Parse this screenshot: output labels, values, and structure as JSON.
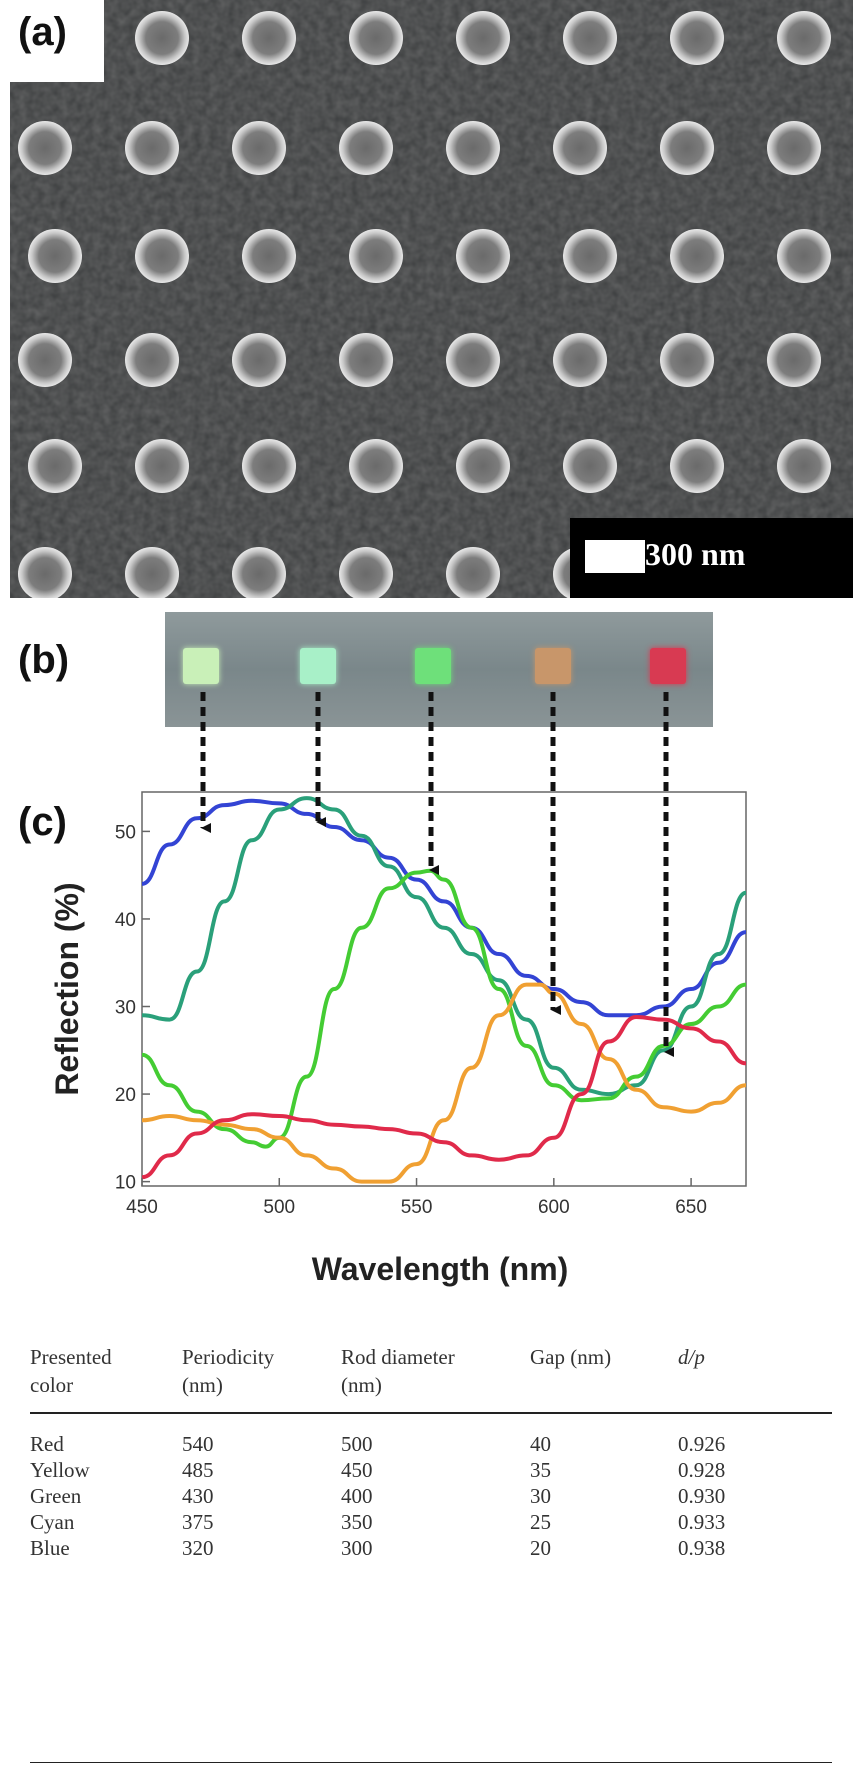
{
  "panels": {
    "a": {
      "label": "(a)",
      "scale_bar": "300 nm"
    },
    "b": {
      "label": "(b)",
      "swatches": [
        {
          "color": "#c9f0b8"
        },
        {
          "color": "#a8f0c8"
        },
        {
          "color": "#6ee07a"
        },
        {
          "color": "#c8966a"
        },
        {
          "color": "#d83a52"
        }
      ]
    },
    "c": {
      "label": "(c)"
    }
  },
  "chart_data": {
    "type": "line",
    "title": "",
    "xlabel": "Wavelength (nm)",
    "ylabel": "Reflection (%)",
    "xlim": [
      450,
      670
    ],
    "ylim": [
      9.5,
      54.5
    ],
    "xticks": [
      "450",
      "500",
      "550",
      "600",
      "650"
    ],
    "yticks": [
      "10",
      "20",
      "30",
      "40",
      "50"
    ],
    "grid": false,
    "series": [
      {
        "color": "#3344d4",
        "x": [
          450,
          460,
          470,
          480,
          490,
          500,
          510,
          520,
          530,
          540,
          550,
          560,
          570,
          580,
          590,
          600,
          610,
          620,
          630,
          640,
          650,
          660,
          670
        ],
        "y": [
          44,
          48.5,
          51.5,
          53,
          53.5,
          53.2,
          52,
          50.5,
          49,
          47,
          44.5,
          42,
          39,
          36,
          33.5,
          32,
          30.5,
          29,
          29,
          30,
          32,
          35,
          38.5
        ]
      },
      {
        "color": "#2aa07a",
        "x": [
          450,
          460,
          470,
          480,
          490,
          500,
          510,
          520,
          530,
          540,
          550,
          560,
          570,
          580,
          590,
          600,
          610,
          620,
          630,
          640,
          650,
          660,
          670
        ],
        "y": [
          29,
          28.5,
          34,
          42,
          49,
          52.5,
          53.8,
          52.5,
          49.5,
          46,
          42.5,
          39,
          36,
          33,
          28.5,
          23,
          20.5,
          20,
          21,
          25,
          30,
          36,
          43
        ]
      },
      {
        "color": "#44cc33",
        "x": [
          450,
          460,
          470,
          480,
          490,
          495,
          500,
          510,
          520,
          530,
          540,
          550,
          555,
          560,
          570,
          580,
          590,
          600,
          610,
          620,
          630,
          640,
          650,
          660,
          670
        ],
        "y": [
          24.5,
          21,
          18,
          16,
          14.5,
          14,
          15,
          22,
          32,
          39,
          43.5,
          45.3,
          45.5,
          44.5,
          39,
          32,
          25.5,
          21,
          19.3,
          19.5,
          22,
          25.5,
          28,
          30,
          32.5
        ]
      },
      {
        "color": "#f0a032",
        "x": [
          450,
          460,
          470,
          480,
          490,
          500,
          510,
          520,
          530,
          540,
          550,
          560,
          570,
          580,
          590,
          595,
          600,
          610,
          620,
          630,
          640,
          650,
          660,
          670
        ],
        "y": [
          17,
          17.5,
          17,
          16.5,
          16,
          15,
          13,
          11.5,
          10,
          10,
          12,
          17,
          23,
          29,
          32.5,
          32.5,
          31.5,
          28,
          24,
          20.5,
          18.5,
          18,
          19,
          21
        ]
      },
      {
        "color": "#e02a4a",
        "x": [
          450,
          460,
          470,
          480,
          490,
          500,
          510,
          520,
          530,
          540,
          550,
          560,
          570,
          580,
          590,
          600,
          610,
          620,
          630,
          640,
          650,
          660,
          670
        ],
        "y": [
          10.5,
          13,
          15.5,
          17,
          17.7,
          17.5,
          17,
          16.5,
          16.3,
          16,
          15.5,
          14.5,
          13,
          12.5,
          13,
          15,
          20,
          26,
          28.8,
          28.5,
          27.5,
          26,
          23.5
        ]
      }
    ]
  },
  "table": {
    "headers": [
      [
        "Presented",
        "color"
      ],
      [
        "Periodicity",
        "(nm)"
      ],
      [
        "Rod diameter",
        "(nm)"
      ],
      [
        "",
        "Gap (nm)"
      ],
      [
        "",
        "d/p"
      ]
    ],
    "rows": [
      [
        "Red",
        "540",
        "500",
        "40",
        "0.926"
      ],
      [
        "Yellow",
        "485",
        "450",
        "35",
        "0.928"
      ],
      [
        "Green",
        "430",
        "400",
        "30",
        "0.930"
      ],
      [
        "Cyan",
        "375",
        "350",
        "25",
        "0.933"
      ],
      [
        "Blue",
        "320",
        "300",
        "20",
        "0.938"
      ]
    ]
  }
}
